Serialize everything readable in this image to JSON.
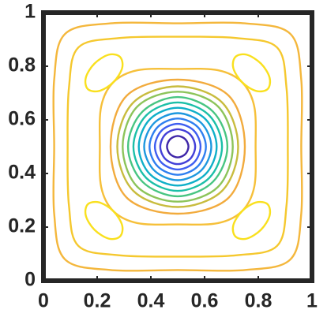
{
  "chart_data": {
    "type": "contour",
    "xlim": [
      0,
      1
    ],
    "ylim": [
      0,
      1
    ],
    "xticks": [
      0,
      0.2,
      0.4,
      0.6,
      0.8,
      1
    ],
    "yticks": [
      0,
      0.2,
      0.4,
      0.6,
      0.8,
      1
    ],
    "contours": [
      {
        "color": "#3e26a8",
        "x": [
          0.54,
          0.528,
          0.5,
          0.472,
          0.46,
          0.472,
          0.5,
          0.528
        ],
        "y": [
          0.5,
          0.528,
          0.54,
          0.528,
          0.5,
          0.472,
          0.46,
          0.472
        ]
      },
      {
        "color": "#4340d8",
        "x": [
          0.565,
          0.546,
          0.5,
          0.454,
          0.435,
          0.454,
          0.5,
          0.546
        ],
        "y": [
          0.5,
          0.546,
          0.565,
          0.546,
          0.5,
          0.454,
          0.435,
          0.454
        ]
      },
      {
        "color": "#3f5ef0",
        "x": [
          0.585,
          0.56,
          0.5,
          0.44,
          0.415,
          0.44,
          0.5,
          0.56
        ],
        "y": [
          0.5,
          0.56,
          0.585,
          0.56,
          0.5,
          0.44,
          0.415,
          0.44
        ]
      },
      {
        "color": "#2f7ff0",
        "x": [
          0.605,
          0.574,
          0.5,
          0.426,
          0.395,
          0.426,
          0.5,
          0.574
        ],
        "y": [
          0.5,
          0.574,
          0.605,
          0.574,
          0.5,
          0.426,
          0.395,
          0.426
        ]
      },
      {
        "color": "#1e98df",
        "x": [
          0.625,
          0.588,
          0.5,
          0.412,
          0.375,
          0.412,
          0.5,
          0.588
        ],
        "y": [
          0.5,
          0.588,
          0.625,
          0.588,
          0.5,
          0.412,
          0.375,
          0.412
        ]
      },
      {
        "color": "#0fafc8",
        "x": [
          0.645,
          0.603,
          0.5,
          0.397,
          0.355,
          0.397,
          0.5,
          0.603
        ],
        "y": [
          0.5,
          0.603,
          0.645,
          0.603,
          0.5,
          0.397,
          0.355,
          0.397
        ]
      },
      {
        "color": "#1cbfa8",
        "x": [
          0.665,
          0.617,
          0.5,
          0.383,
          0.335,
          0.383,
          0.5,
          0.617
        ],
        "y": [
          0.5,
          0.617,
          0.665,
          0.617,
          0.5,
          0.383,
          0.335,
          0.383
        ]
      },
      {
        "color": "#48c582",
        "x": [
          0.685,
          0.631,
          0.5,
          0.369,
          0.315,
          0.369,
          0.5,
          0.631
        ],
        "y": [
          0.5,
          0.631,
          0.685,
          0.631,
          0.5,
          0.369,
          0.315,
          0.369
        ]
      },
      {
        "color": "#8cc45a",
        "x": [
          0.705,
          0.65,
          0.5,
          0.35,
          0.295,
          0.35,
          0.5,
          0.65
        ],
        "y": [
          0.5,
          0.65,
          0.705,
          0.65,
          0.5,
          0.35,
          0.295,
          0.35
        ]
      },
      {
        "color": "#c8bc3e",
        "x": [
          0.725,
          0.665,
          0.5,
          0.335,
          0.275,
          0.335,
          0.5,
          0.665
        ],
        "y": [
          0.5,
          0.665,
          0.725,
          0.665,
          0.5,
          0.335,
          0.275,
          0.335
        ]
      },
      {
        "color": "#f2ab3d",
        "x": [
          0.75,
          0.69,
          0.5,
          0.31,
          0.25,
          0.31,
          0.5,
          0.69
        ],
        "y": [
          0.5,
          0.69,
          0.75,
          0.69,
          0.5,
          0.31,
          0.25,
          0.31
        ]
      },
      {
        "color": "#f6c03a",
        "x": [
          0.79,
          0.785,
          0.74,
          0.65,
          0.5,
          0.35,
          0.26,
          0.215,
          0.21,
          0.215,
          0.26,
          0.35,
          0.5,
          0.65,
          0.74,
          0.785
        ],
        "y": [
          0.5,
          0.65,
          0.74,
          0.785,
          0.79,
          0.785,
          0.74,
          0.65,
          0.5,
          0.35,
          0.26,
          0.215,
          0.21,
          0.215,
          0.26,
          0.35
        ]
      },
      {
        "color": "#f5c82e",
        "x": [
          0.91,
          0.905,
          0.87,
          0.72,
          0.5,
          0.28,
          0.13,
          0.095,
          0.09,
          0.095,
          0.13,
          0.28,
          0.5,
          0.72,
          0.87,
          0.905
        ],
        "y": [
          0.5,
          0.72,
          0.87,
          0.905,
          0.91,
          0.905,
          0.87,
          0.72,
          0.5,
          0.28,
          0.13,
          0.095,
          0.09,
          0.095,
          0.13,
          0.28
        ]
      },
      {
        "color": "#f4b73c",
        "x": [
          0.96,
          0.96,
          0.92,
          0.75,
          0.5,
          0.25,
          0.08,
          0.04,
          0.04,
          0.04,
          0.08,
          0.25,
          0.5,
          0.75,
          0.92,
          0.96
        ],
        "y": [
          0.5,
          0.75,
          0.92,
          0.96,
          0.96,
          0.96,
          0.92,
          0.75,
          0.5,
          0.25,
          0.08,
          0.04,
          0.04,
          0.04,
          0.08,
          0.25
        ]
      },
      {
        "color": "#f9e01e",
        "x": [
          0.285,
          0.243,
          0.19,
          0.158,
          0.165,
          0.208,
          0.26,
          0.293
        ],
        "y": [
          0.835,
          0.843,
          0.81,
          0.758,
          0.715,
          0.708,
          0.74,
          0.793
        ]
      },
      {
        "color": "#f9e01e",
        "x": [
          0.715,
          0.757,
          0.81,
          0.842,
          0.835,
          0.792,
          0.74,
          0.707
        ],
        "y": [
          0.835,
          0.843,
          0.81,
          0.758,
          0.715,
          0.708,
          0.74,
          0.793
        ]
      },
      {
        "color": "#f9e01e",
        "x": [
          0.285,
          0.243,
          0.19,
          0.158,
          0.165,
          0.208,
          0.26,
          0.293
        ],
        "y": [
          0.165,
          0.157,
          0.19,
          0.242,
          0.285,
          0.292,
          0.26,
          0.207
        ]
      },
      {
        "color": "#f9e01e",
        "x": [
          0.715,
          0.757,
          0.81,
          0.842,
          0.835,
          0.792,
          0.74,
          0.707
        ],
        "y": [
          0.165,
          0.157,
          0.19,
          0.242,
          0.285,
          0.292,
          0.26,
          0.207
        ]
      }
    ]
  }
}
